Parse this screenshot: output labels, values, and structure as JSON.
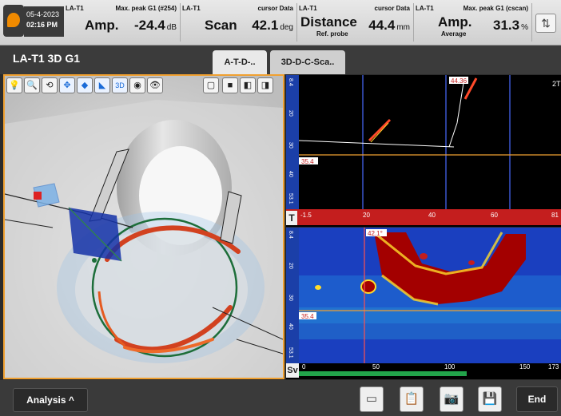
{
  "header": {
    "date": "05-4-2023",
    "time": "02:16 PM",
    "cells": [
      {
        "source": "LA-T1",
        "header": "Max. peak G1 (#254)",
        "label": "Amp.",
        "value": "-24.4",
        "unit": "dB",
        "sub": ""
      },
      {
        "source": "LA-T1",
        "header": "cursor Data",
        "label": "Scan",
        "value": "42.1",
        "unit": "deg",
        "sub": ""
      },
      {
        "source": "LA-T1",
        "header": "cursor Data",
        "label": "Distance",
        "value": "44.4",
        "unit": "mm",
        "sub": "Ref. probe"
      },
      {
        "source": "LA-T1",
        "header": "Max. peak G1 (cscan)",
        "label": "Amp.",
        "value": "31.3",
        "unit": "%",
        "sub": "Average"
      }
    ]
  },
  "title": "LA-T1 3D G1",
  "tabs": [
    "A-T-D-..",
    "3D-D-C-Sca.."
  ],
  "bscan": {
    "cursor_label": "44.36",
    "ref_label": "35.4",
    "corner_label": "2T",
    "left_ticks": [
      "8.4",
      "20",
      "30",
      "40",
      "53.1"
    ],
    "bottom_ticks": [
      "-1.5",
      "20",
      "40",
      "60",
      "81"
    ],
    "mode_letter": "T"
  },
  "cscan": {
    "cursor_label": "42.1°",
    "ref_label": "35.4",
    "left_ticks": [
      "8.4",
      "20",
      "30",
      "40",
      "53.1"
    ],
    "bottom_ticks": [
      "0",
      "50",
      "100",
      "150",
      "173"
    ],
    "mode_letter": "Sv"
  },
  "bottom": {
    "analysis_label": "Analysis ^",
    "end_label": "End"
  }
}
